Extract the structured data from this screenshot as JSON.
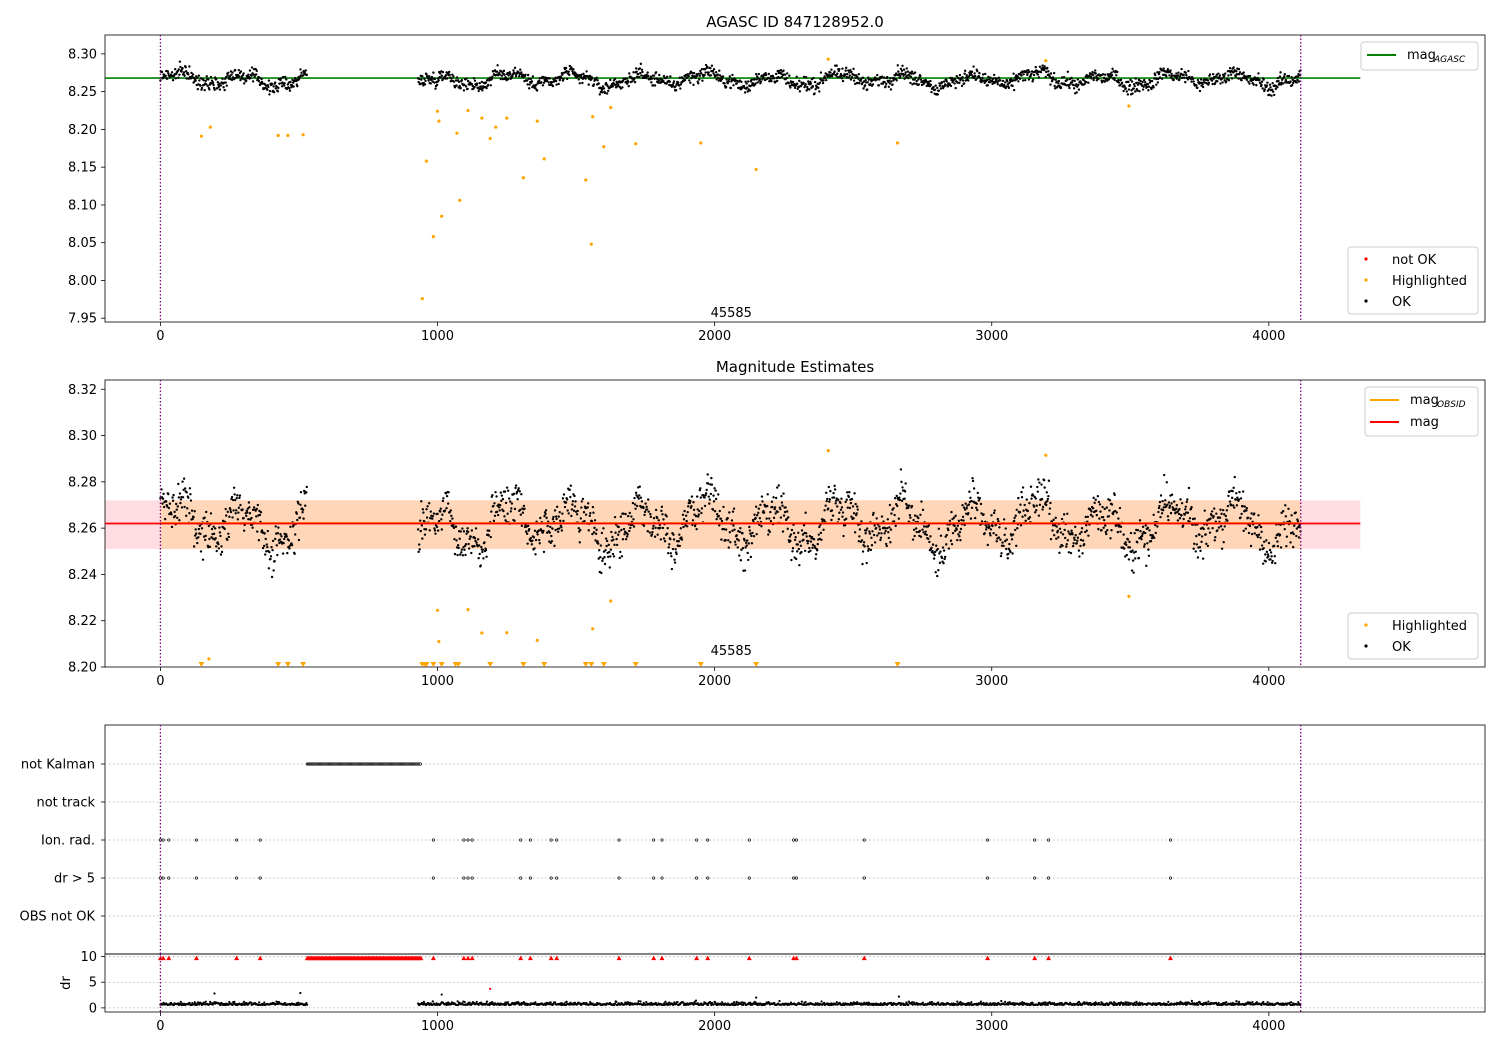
{
  "chart_data": [
    {
      "type": "scatter",
      "title": "AGASC ID 847128952.0",
      "xlabel": "",
      "ylabel": "",
      "xlim": [
        -200,
        4780
      ],
      "ylim": [
        7.945,
        8.325
      ],
      "xticks": [
        "0",
        "1000",
        "2000",
        "3000",
        "4000"
      ],
      "yticks": [
        "7.95",
        "8.00",
        "8.05",
        "8.10",
        "8.15",
        "8.20",
        "8.25",
        "8.30"
      ],
      "annotation": {
        "text": "45585",
        "x": 2060,
        "y": 7.957
      },
      "vlines": [
        0,
        4115
      ],
      "hline": {
        "name": "mag_AGASC",
        "y": 8.268,
        "x_range": [
          -200,
          4330
        ],
        "color": "#008000"
      },
      "legend_lines": [
        {
          "label": "mag",
          "sub": "AGASC",
          "color": "#008000"
        }
      ],
      "legend_points": [
        {
          "label": "not OK",
          "color": "#ff0000"
        },
        {
          "label": "Highlighted",
          "color": "#ffa500"
        },
        {
          "label": "OK",
          "color": "#000000"
        }
      ],
      "segments": [
        {
          "start": 0,
          "end": 530
        },
        {
          "start": 930,
          "end": 4115
        }
      ],
      "baseline": 8.262,
      "spread": 0.011,
      "highlighted": [
        [
          148,
          8.191
        ],
        [
          180,
          8.203
        ],
        [
          425,
          8.192
        ],
        [
          460,
          8.192
        ],
        [
          515,
          8.193
        ],
        [
          945,
          7.976
        ],
        [
          960,
          8.158
        ],
        [
          985,
          8.058
        ],
        [
          1000,
          8.224
        ],
        [
          1005,
          8.211
        ],
        [
          1015,
          8.085
        ],
        [
          1070,
          8.195
        ],
        [
          1080,
          8.106
        ],
        [
          1110,
          8.225
        ],
        [
          1160,
          8.215
        ],
        [
          1190,
          8.188
        ],
        [
          1210,
          8.203
        ],
        [
          1250,
          8.215
        ],
        [
          1310,
          8.136
        ],
        [
          1360,
          8.211
        ],
        [
          1385,
          8.161
        ],
        [
          1535,
          8.133
        ],
        [
          1555,
          8.048
        ],
        [
          1560,
          8.217
        ],
        [
          1600,
          8.177
        ],
        [
          1625,
          8.229
        ],
        [
          1715,
          8.181
        ],
        [
          1950,
          8.182
        ],
        [
          2150,
          8.147
        ],
        [
          2410,
          8.293
        ],
        [
          2660,
          8.182
        ],
        [
          3195,
          8.291
        ],
        [
          3495,
          8.231
        ]
      ]
    },
    {
      "type": "scatter",
      "title": "Magnitude Estimates",
      "xlabel": "",
      "ylabel": "",
      "xlim": [
        -200,
        4780
      ],
      "ylim": [
        8.2,
        8.324
      ],
      "xticks": [
        "0",
        "1000",
        "2000",
        "3000",
        "4000"
      ],
      "yticks": [
        "8.20",
        "8.22",
        "8.24",
        "8.26",
        "8.28",
        "8.30",
        "8.32"
      ],
      "annotation": {
        "text": "45585",
        "x": 2060,
        "y": 8.2035
      },
      "vlines": [
        0,
        4115
      ],
      "band": {
        "y_range": [
          8.251,
          8.272
        ],
        "x_range": [
          -200,
          4330
        ]
      },
      "band_obsid": {
        "y_range": [
          8.251,
          8.272
        ],
        "x_range": [
          0,
          4115
        ]
      },
      "lines": [
        {
          "name": "mag_OBSID",
          "y": 8.2622,
          "x_range": [
            0,
            4115
          ],
          "color": "#ffa500"
        },
        {
          "name": "mag",
          "y": 8.262,
          "x_range": [
            -200,
            4330
          ],
          "color": "#ff0000"
        }
      ],
      "legend_lines": [
        {
          "label": "mag",
          "sub": "OBSID",
          "color": "#ffa500"
        },
        {
          "label": "mag",
          "sub": "",
          "color": "#ff0000"
        }
      ],
      "legend_points": [
        {
          "label": "Highlighted",
          "color": "#ffa500"
        },
        {
          "label": "OK",
          "color": "#000000"
        }
      ],
      "highlighted": [
        [
          175,
          8.2035
        ],
        [
          1000,
          8.2245
        ],
        [
          1005,
          8.211
        ],
        [
          1110,
          8.2248
        ],
        [
          1160,
          8.2147
        ],
        [
          1250,
          8.2148
        ],
        [
          1360,
          8.2115
        ],
        [
          1560,
          8.2165
        ],
        [
          1625,
          8.2285
        ],
        [
          2410,
          8.2935
        ],
        [
          3195,
          8.2915
        ],
        [
          3495,
          8.2305
        ]
      ],
      "clipped_highlighted_x": [
        148,
        425,
        460,
        515,
        945,
        955,
        960,
        985,
        1015,
        1065,
        1075,
        1190,
        1310,
        1385,
        1535,
        1555,
        1600,
        1715,
        1950,
        2150,
        2660
      ]
    },
    {
      "type": "scatter",
      "title": "",
      "xlabel": "",
      "ylabel": "",
      "xlim": [
        -200,
        4780
      ],
      "categories": [
        "not Kalman",
        "not track",
        "Ion. rad.",
        "dr > 5",
        "OBS not OK"
      ],
      "vlines": [
        0,
        4115
      ],
      "not_kalman_range": [
        530,
        940
      ],
      "flag_x": [
        0,
        10,
        30,
        130,
        275,
        360,
        985,
        1095,
        1110,
        1125,
        1300,
        1335,
        1410,
        1430,
        1655,
        1780,
        1810,
        1935,
        1975,
        2125,
        2285,
        2295,
        2540,
        2985,
        3155,
        3205,
        3645
      ]
    },
    {
      "type": "scatter",
      "title": "",
      "xlabel": "",
      "ylabel": "dr",
      "xlim": [
        -200,
        4780
      ],
      "ylim": [
        -0.8,
        10.5
      ],
      "xticks": [
        "0",
        "1000",
        "2000",
        "3000",
        "4000"
      ],
      "yticks": [
        "0",
        "5",
        "10"
      ],
      "vlines": [
        0,
        4115
      ],
      "notok_y": 9.7,
      "notok_range": [
        530,
        940
      ],
      "red_points": [
        [
          1190,
          3.7
        ]
      ],
      "outliers": [
        [
          195,
          2.8
        ],
        [
          505,
          2.9
        ],
        [
          1015,
          2.6
        ],
        [
          2150,
          2.0
        ],
        [
          2665,
          2.2
        ]
      ]
    }
  ]
}
